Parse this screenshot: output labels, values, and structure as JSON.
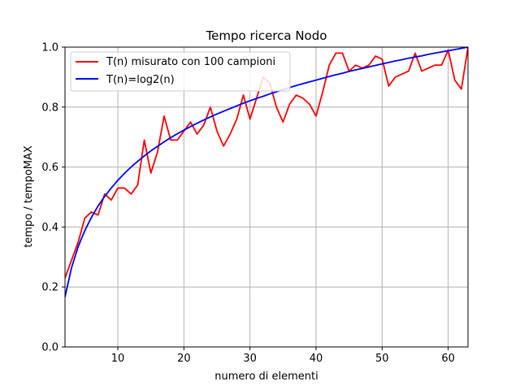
{
  "chart_data": {
    "type": "line",
    "title": "Tempo ricerca Nodo",
    "xlabel": "numero di elementi",
    "ylabel": "tempo / tempoMAX",
    "xlim": [
      2,
      63
    ],
    "ylim": [
      0.0,
      1.0
    ],
    "grid": true,
    "legend_position": "top-left",
    "x_ticks": [
      10,
      20,
      30,
      40,
      50,
      60
    ],
    "y_ticks": [
      0.0,
      0.2,
      0.4,
      0.6,
      0.8,
      1.0
    ],
    "x_tick_labels": [
      "10",
      "20",
      "30",
      "40",
      "50",
      "60"
    ],
    "y_tick_labels": [
      "0.0",
      "0.2",
      "0.4",
      "0.6",
      "0.8",
      "1.0"
    ],
    "series": [
      {
        "name": "T(n) misurato con 100 campioni",
        "color": "#ff0000",
        "x": [
          2,
          3,
          4,
          5,
          6,
          7,
          8,
          9,
          10,
          11,
          12,
          13,
          14,
          15,
          16,
          17,
          18,
          19,
          20,
          21,
          22,
          23,
          24,
          25,
          26,
          27,
          28,
          29,
          30,
          31,
          32,
          33,
          34,
          35,
          36,
          37,
          38,
          39,
          40,
          41,
          42,
          43,
          44,
          45,
          46,
          47,
          48,
          49,
          50,
          51,
          52,
          53,
          54,
          55,
          56,
          57,
          58,
          59,
          60,
          61,
          62,
          63
        ],
        "y": [
          0.23,
          0.29,
          0.35,
          0.43,
          0.45,
          0.44,
          0.51,
          0.49,
          0.53,
          0.53,
          0.51,
          0.54,
          0.69,
          0.58,
          0.65,
          0.77,
          0.69,
          0.69,
          0.72,
          0.75,
          0.71,
          0.74,
          0.8,
          0.72,
          0.67,
          0.71,
          0.76,
          0.84,
          0.76,
          0.83,
          0.9,
          0.88,
          0.8,
          0.75,
          0.81,
          0.84,
          0.83,
          0.81,
          0.77,
          0.85,
          0.94,
          0.98,
          0.98,
          0.92,
          0.94,
          0.93,
          0.94,
          0.97,
          0.96,
          0.87,
          0.9,
          0.91,
          0.92,
          0.98,
          0.92,
          0.93,
          0.94,
          0.94,
          0.99,
          0.89,
          0.86,
          1.0
        ]
      },
      {
        "name": "T(n)=log2(n)",
        "color": "#0000ff",
        "x": [
          2,
          3,
          4,
          5,
          6,
          7,
          8,
          9,
          10,
          11,
          12,
          13,
          14,
          15,
          16,
          17,
          18,
          19,
          20,
          21,
          22,
          23,
          24,
          25,
          26,
          27,
          28,
          29,
          30,
          31,
          32,
          33,
          34,
          35,
          36,
          37,
          38,
          39,
          40,
          41,
          42,
          43,
          44,
          45,
          46,
          47,
          48,
          49,
          50,
          51,
          52,
          53,
          54,
          55,
          56,
          57,
          58,
          59,
          60,
          61,
          62,
          63
        ],
        "y": [
          0.167,
          0.265,
          0.335,
          0.388,
          0.432,
          0.47,
          0.502,
          0.53,
          0.556,
          0.579,
          0.6,
          0.619,
          0.637,
          0.654,
          0.669,
          0.684,
          0.698,
          0.711,
          0.723,
          0.735,
          0.746,
          0.757,
          0.767,
          0.777,
          0.786,
          0.795,
          0.804,
          0.813,
          0.821,
          0.829,
          0.836,
          0.844,
          0.851,
          0.858,
          0.865,
          0.872,
          0.878,
          0.884,
          0.89,
          0.896,
          0.902,
          0.908,
          0.913,
          0.919,
          0.924,
          0.929,
          0.934,
          0.939,
          0.944,
          0.949,
          0.954,
          0.958,
          0.963,
          0.967,
          0.971,
          0.976,
          0.98,
          0.984,
          0.988,
          0.992,
          0.996,
          1.0
        ]
      }
    ]
  }
}
